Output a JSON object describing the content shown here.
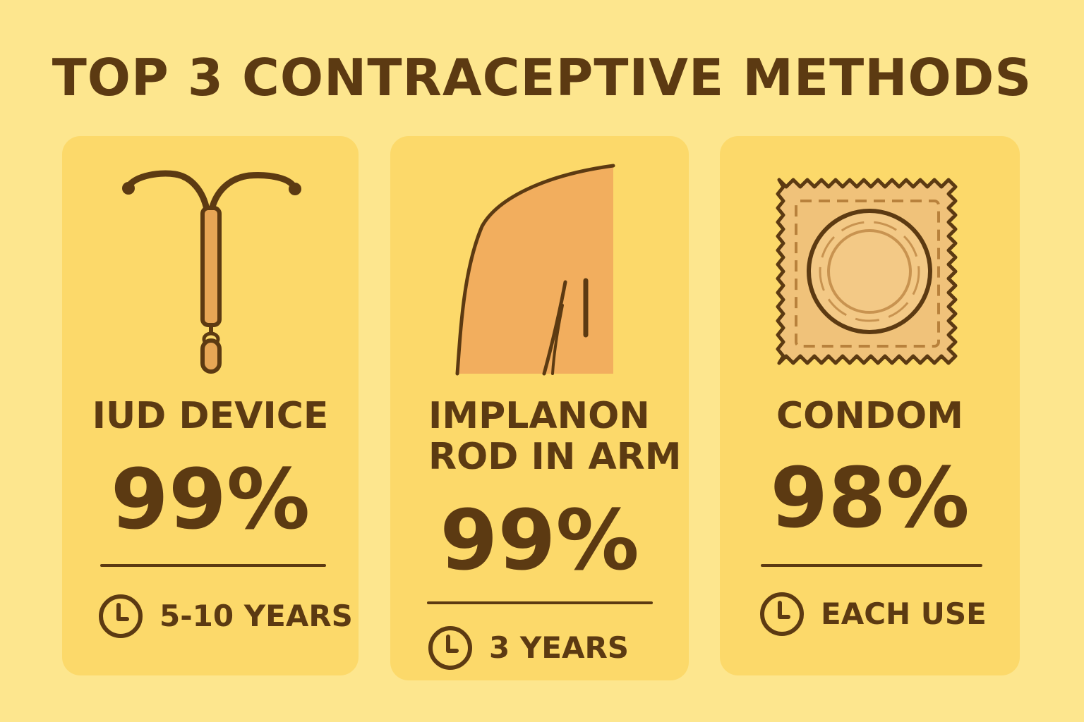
{
  "title": "TOP 3 CONTRACEPTIVE METHODS",
  "colors": {
    "background": "#FDE68E",
    "card": "#FCD96A",
    "text": "#5C3A12",
    "accent": "#F0A85A"
  },
  "methods": [
    {
      "name": "IUD DEVICE",
      "effectiveness": "99%",
      "duration": "5-10 YEARS",
      "icon": "iud-device-icon"
    },
    {
      "name_lines": [
        "IMPLANON",
        "ROD IN ARM"
      ],
      "effectiveness": "99%",
      "duration": "3 YEARS",
      "icon": "arm-implant-icon"
    },
    {
      "name": "CONDOM",
      "effectiveness": "98%",
      "duration": "EACH USE",
      "icon": "condom-package-icon"
    }
  ]
}
